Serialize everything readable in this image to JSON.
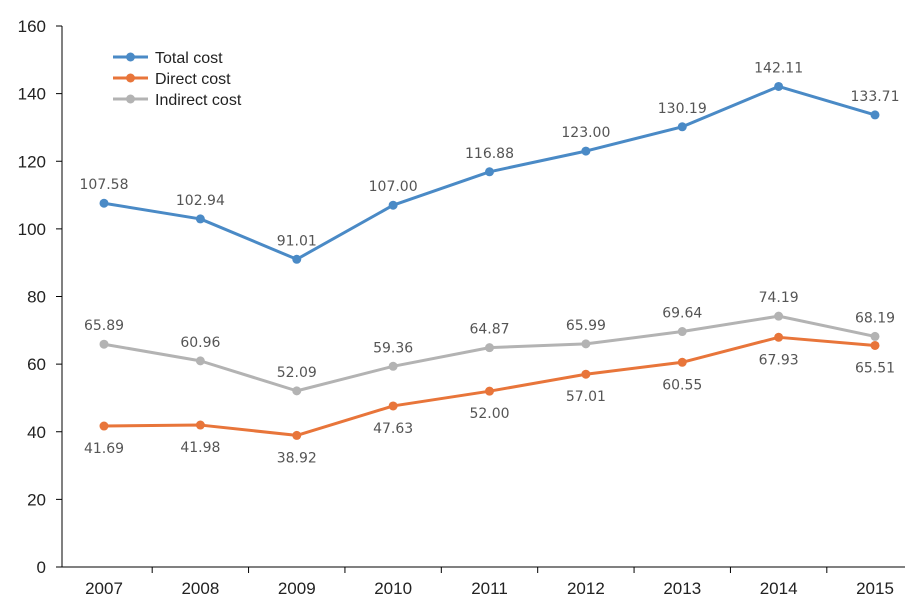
{
  "chart_data": {
    "type": "line",
    "title": "",
    "xlabel": "",
    "ylabel": "",
    "categories": [
      "2007",
      "2008",
      "2009",
      "2010",
      "2011",
      "2012",
      "2013",
      "2014",
      "2015"
    ],
    "ylim": [
      0,
      160
    ],
    "yticks": [
      0,
      20,
      40,
      60,
      80,
      100,
      120,
      140,
      160
    ],
    "grid": false,
    "legend_position": "top-left",
    "series": [
      {
        "name": "Total cost",
        "color": "#4a8ac6",
        "values": [
          107.58,
          102.94,
          91.01,
          107.0,
          116.88,
          123.0,
          130.19,
          142.11,
          133.71
        ],
        "labels": [
          "107.58",
          "102.94",
          "91.01",
          "107.00",
          "116.88",
          "123.00",
          "130.19",
          "142.11",
          "133.71"
        ],
        "label_placement": "above"
      },
      {
        "name": "Direct cost",
        "color": "#e8753a",
        "values": [
          41.69,
          41.98,
          38.92,
          47.63,
          52.0,
          57.01,
          60.55,
          67.93,
          65.51
        ],
        "labels": [
          "41.69",
          "41.98",
          "38.92",
          "47.63",
          "52.00",
          "57.01",
          "60.55",
          "67.93",
          "65.51"
        ],
        "label_placement": "below"
      },
      {
        "name": "Indirect cost",
        "color": "#b3b3b3",
        "values": [
          65.89,
          60.96,
          52.09,
          59.36,
          64.87,
          65.99,
          69.64,
          74.19,
          68.19
        ],
        "labels": [
          "65.89",
          "60.96",
          "52.09",
          "59.36",
          "64.87",
          "65.99",
          "69.64",
          "74.19",
          "68.19"
        ],
        "label_placement": "above"
      }
    ]
  }
}
